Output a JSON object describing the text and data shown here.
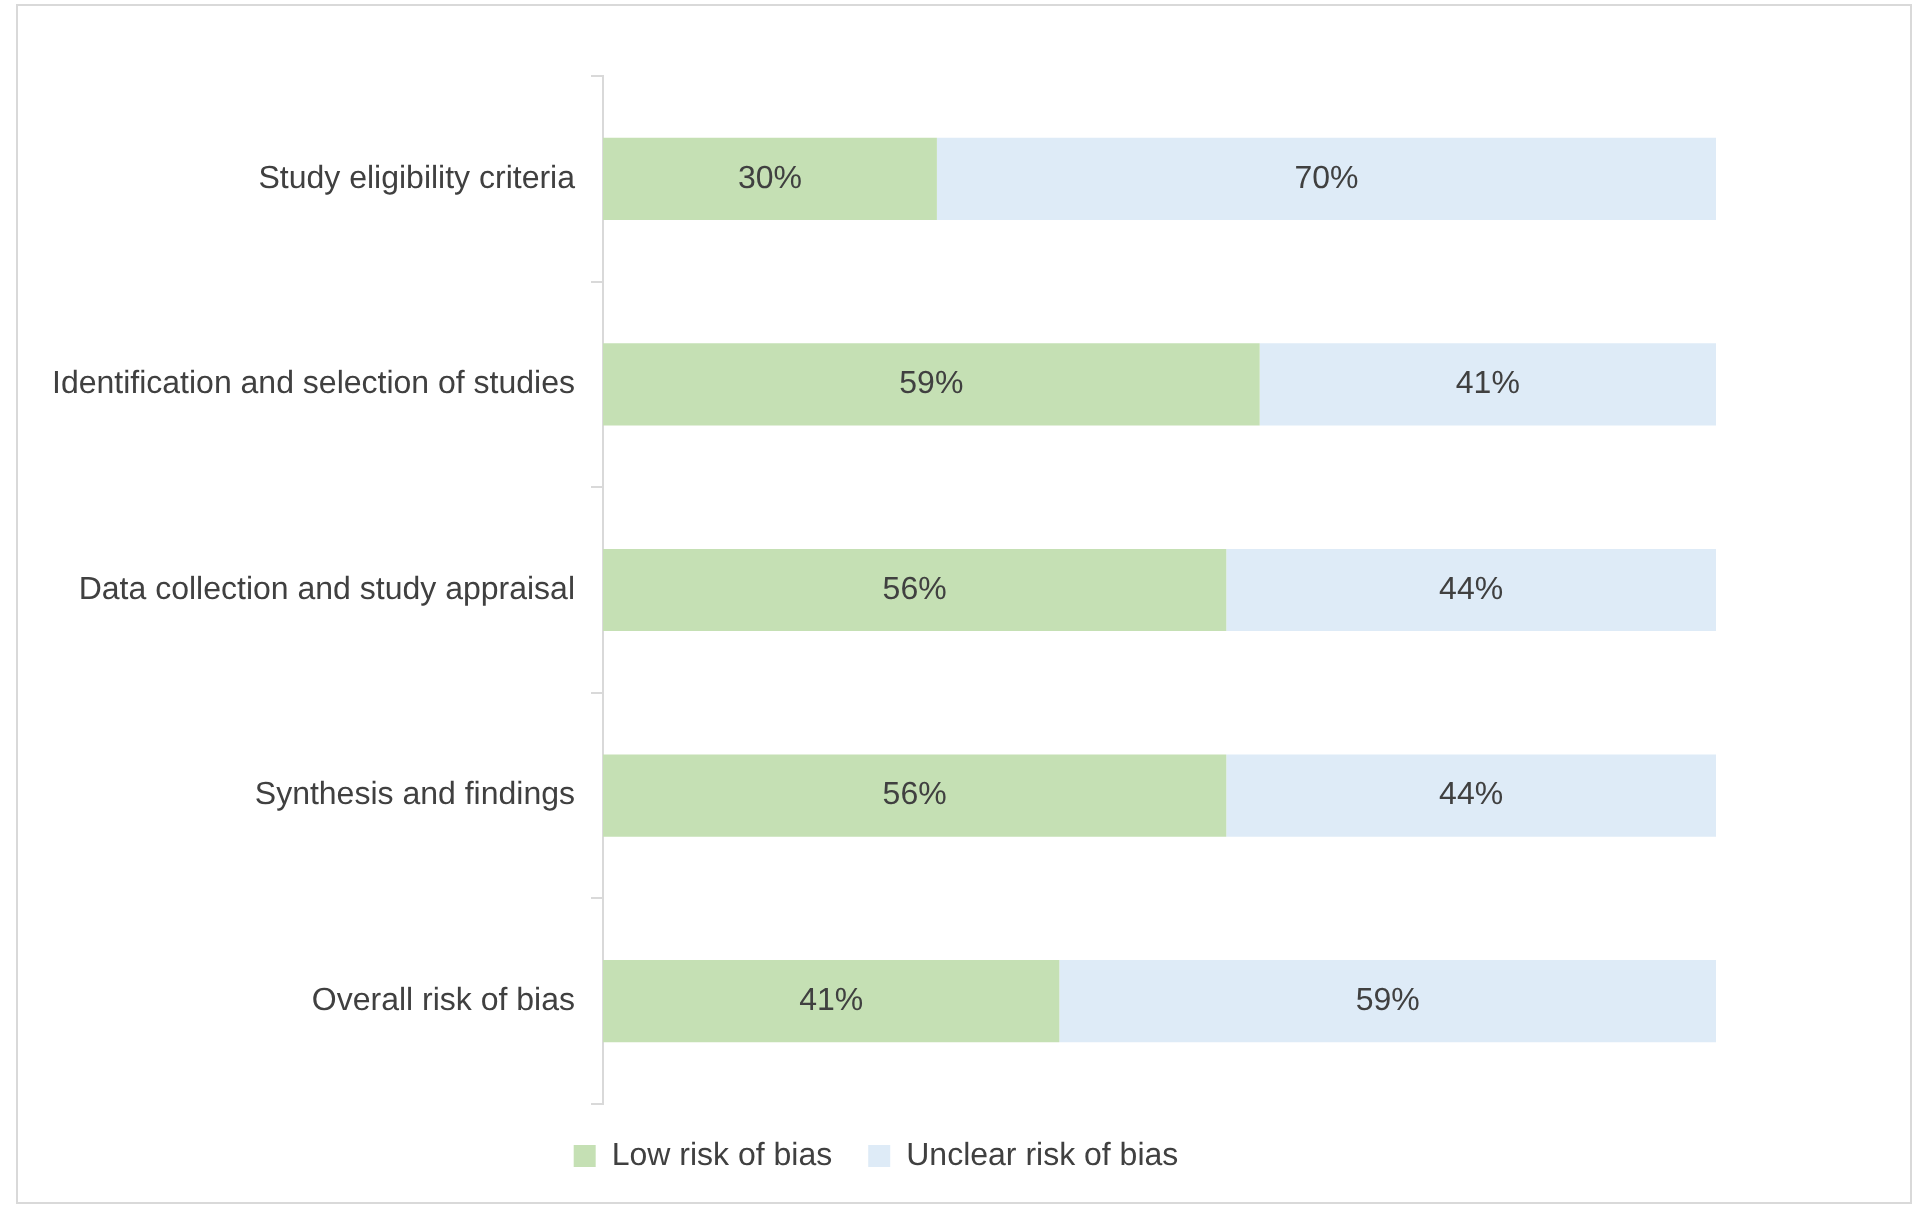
{
  "chart_data": {
    "type": "bar",
    "orientation": "horizontal",
    "stacked": true,
    "categories": [
      "Study eligibility criteria",
      "Identification and selection of studies",
      "Data collection and study appraisal",
      "Synthesis and findings",
      "Overall risk of bias"
    ],
    "series": [
      {
        "name": "Low risk of bias",
        "color": "#c5e0b4",
        "values": [
          30,
          59,
          56,
          56,
          41
        ],
        "value_labels": [
          "30%",
          "59%",
          "56%",
          "56%",
          "41%"
        ]
      },
      {
        "name": "Unclear risk of bias",
        "color": "#deebf7",
        "values": [
          70,
          41,
          44,
          44,
          59
        ],
        "value_labels": [
          "70%",
          "41%",
          "44%",
          "44%",
          "59%"
        ]
      }
    ],
    "xlim": [
      0,
      100
    ],
    "tick_labels": "y",
    "legend": "bottom"
  }
}
